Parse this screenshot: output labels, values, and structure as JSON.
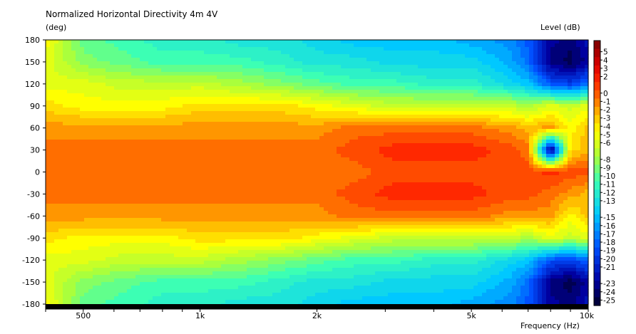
{
  "chart_data": {
    "type": "heatmap",
    "title": "Normalized Horizontal Directivity 4m 4V",
    "ylabel": "(deg)",
    "xlabel": "Frequency  (Hz)",
    "colorbar_label": "Level  (dB)",
    "x_scale": "log",
    "xlim": [
      400,
      10000
    ],
    "ylim": [
      -180,
      180
    ],
    "x_ticks": [
      {
        "value": 500,
        "label": "500"
      },
      {
        "value": 1000,
        "label": "1k"
      },
      {
        "value": 2000,
        "label": "2k"
      },
      {
        "value": 5000,
        "label": "5k"
      },
      {
        "value": 10000,
        "label": "10k"
      }
    ],
    "y_ticks": [
      180,
      150,
      120,
      90,
      60,
      30,
      0,
      -30,
      -60,
      -90,
      -120,
      -150,
      -180
    ],
    "colorbar_ticks": [
      5,
      4,
      3,
      2,
      0,
      -1,
      -2,
      -3,
      -4,
      -5,
      -6,
      -8,
      -9,
      -10,
      -11,
      -12,
      -13,
      -15,
      -16,
      -17,
      -18,
      -19,
      -20,
      -21,
      -23,
      -24,
      -25
    ],
    "colorbar_range": [
      -26,
      6
    ],
    "x_frequencies": [
      400,
      500,
      630,
      800,
      1000,
      1250,
      1600,
      2000,
      2500,
      3150,
      4000,
      5000,
      6300,
      7000,
      8000,
      9000,
      10000
    ],
    "y_angles": [
      180,
      150,
      120,
      90,
      60,
      30,
      0,
      -30,
      -60,
      -90,
      -120,
      -150,
      -180
    ],
    "z_levels_db": [
      [
        -5,
        -10,
        -11,
        -12,
        -12,
        -13,
        -13,
        -14,
        -15,
        -15,
        -15,
        -16,
        -17,
        -19,
        -23,
        -24,
        -22
      ],
      [
        -6,
        -9,
        -10,
        -11,
        -11,
        -11,
        -12,
        -13,
        -13,
        -14,
        -14,
        -14,
        -16,
        -18,
        -24,
        -25,
        -23
      ],
      [
        -6,
        -6,
        -7,
        -7,
        -7,
        -8,
        -9,
        -10,
        -11,
        -11,
        -12,
        -12,
        -14,
        -15,
        -19,
        -20,
        -18
      ],
      [
        -4,
        -5,
        -5,
        -5,
        -4,
        -4,
        -4,
        -5,
        -6,
        -7,
        -7,
        -7,
        -7,
        -8,
        -6,
        -7,
        -6
      ],
      [
        -2,
        -2,
        -2,
        -2,
        -2,
        -2,
        -2,
        -2,
        -1,
        -1,
        -1,
        -1,
        -2,
        -3,
        -2,
        -5,
        -3
      ],
      [
        -1,
        -1,
        -1,
        -1,
        -1,
        -1,
        -1,
        -1,
        0,
        1,
        1,
        1,
        0,
        -1,
        -25,
        -4,
        -3
      ],
      [
        -1,
        -1,
        -1,
        -1,
        -1,
        -1,
        -1,
        -1,
        -1,
        0,
        0,
        0,
        0,
        0,
        1,
        0,
        0
      ],
      [
        -1,
        -1,
        -1,
        -1,
        -1,
        -1,
        -1,
        -1,
        0,
        1,
        1,
        1,
        0,
        0,
        -1,
        -2,
        -3
      ],
      [
        -2,
        -2,
        -2,
        -2,
        -2,
        -2,
        -2,
        -2,
        -1,
        -1,
        -1,
        -1,
        -2,
        -2,
        -2,
        -5,
        -3
      ],
      [
        -4,
        -5,
        -5,
        -5,
        -4,
        -4,
        -4,
        -5,
        -6,
        -7,
        -7,
        -7,
        -7,
        -8,
        -6,
        -7,
        -6
      ],
      [
        -6,
        -6,
        -7,
        -7,
        -7,
        -8,
        -9,
        -10,
        -11,
        -11,
        -12,
        -12,
        -14,
        -15,
        -19,
        -20,
        -18
      ],
      [
        -6,
        -9,
        -10,
        -11,
        -11,
        -11,
        -12,
        -13,
        -13,
        -14,
        -14,
        -14,
        -16,
        -18,
        -24,
        -25,
        -23
      ],
      [
        -5,
        -10,
        -11,
        -12,
        -12,
        -13,
        -13,
        -14,
        -15,
        -15,
        -15,
        -16,
        -17,
        -19,
        -23,
        -24,
        -22
      ]
    ]
  }
}
